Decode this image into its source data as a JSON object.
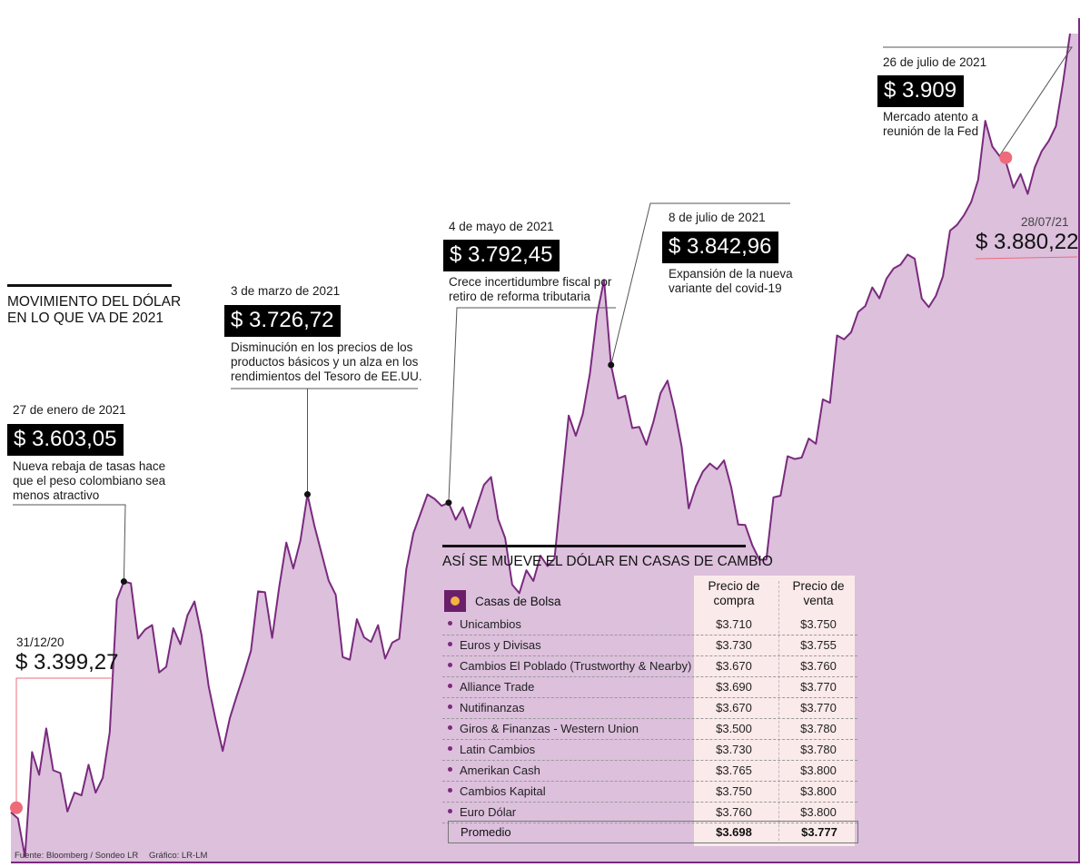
{
  "colors": {
    "fill": "#dcc0dc",
    "line": "#7a2a7e",
    "marker": "#ee6b7a",
    "pin": "#111111",
    "box": "#000000"
  },
  "header": {
    "line1": "MOVIMIENTO DEL DÓLAR",
    "line2": "EN LO QUE VA DE 2021"
  },
  "chart_data": {
    "type": "area",
    "x_label": "",
    "y_label": "",
    "ylim": [
      3360,
      3925
    ],
    "grid": false,
    "values": [
      3393.2,
      3389.1,
      3363.9,
      3433.1,
      3418.0,
      3448.7,
      3421.0,
      3419.2,
      3393.7,
      3406.2,
      3404.4,
      3424.7,
      3406.2,
      3416.0,
      3446.2,
      3533.9,
      3546.0,
      3544.8,
      3508.2,
      3514.2,
      3517.2,
      3485.8,
      3489.5,
      3515.1,
      3504.5,
      3523.5,
      3532.8,
      3510.5,
      3476.7,
      3454.4,
      3433.9,
      3455.5,
      3470.4,
      3484.6,
      3500.2,
      3539.5,
      3538.9,
      3508.7,
      3542.5,
      3571.8,
      3554.7,
      3573.1,
      3603.7,
      3582.5,
      3564.7,
      3546.7,
      3537.2,
      3496.0,
      3494.2,
      3521.1,
      3509.1,
      3506.0,
      3517.1,
      3495.0,
      3505.5,
      3508.1,
      3554.2,
      3578.0,
      3590.8,
      3603.7,
      3600.7,
      3596.1,
      3598.2,
      3586.9,
      3595.1,
      3581.5,
      3595.9,
      3610.0,
      3615.2,
      3587.3,
      3574.9,
      3543.9,
      3538.3,
      3553.4,
      3546.4,
      3563.1,
      3556.2,
      3561.2,
      3609.1,
      3655.9,
      3642.5,
      3656.8,
      3683.5,
      3722.4,
      3745.7,
      3689.4,
      3667.2,
      3669.0,
      3647.6,
      3648.4,
      3636.6,
      3651.8,
      3670.6,
      3679.0,
      3659.6,
      3635.1,
      3594.4,
      3608.9,
      3618.8,
      3624.1,
      3620.3,
      3626.2,
      3608.7,
      3583.7,
      3583.5,
      3570.1,
      3560.4,
      3560.6,
      3601.7,
      3602.8,
      3629.0,
      3627.1,
      3628.1,
      3640.7,
      3637.2,
      3666.6,
      3664.3,
      3708.9,
      3706.4,
      3711.0,
      3724.5,
      3728.4,
      3740.7,
      3733.5,
      3746.4,
      3753.2,
      3755.8,
      3762.5,
      3759.7,
      3733.4,
      3727.7,
      3735.1,
      3748.1,
      3778.3,
      3782.1,
      3788.7,
      3797.3,
      3812.0,
      3851.0,
      3834.0,
      3827.8,
      3822.6,
      3806.8,
      3815.8,
      3802.6,
      3820.0,
      3831.0,
      3837.8,
      3847.5,
      3876.0,
      3908.8
    ],
    "annotations": [
      {
        "date": "31/12/20",
        "value": "$ 3.399,27",
        "description": ""
      },
      {
        "date": "27 de enero de 2021",
        "value": "$ 3.603,05",
        "description": "Nueva rebaja de tasas hace que el peso colombiano sea menos atractivo"
      },
      {
        "date": "3 de marzo de 2021",
        "value": "$ 3.726,72",
        "description": "Disminución en los precios de los productos básicos y un alza en los rendimientos del Tesoro de EE.UU."
      },
      {
        "date": "4 de mayo de 2021",
        "value": "$ 3.792,45",
        "description": "Crece incertidumbre fiscal por retiro de reforma tributaria"
      },
      {
        "date": "8 de julio de 2021",
        "value": "$ 3.842,96",
        "description": "Expansión de la nueva variante del covid-19"
      },
      {
        "date": "26 de julio de 2021",
        "value": "$ 3.909",
        "description": "Mercado atento a reunión de la Fed"
      },
      {
        "date": "28/07/21",
        "value": "$ 3.880,22",
        "description": ""
      }
    ]
  },
  "table": {
    "title": "ASÍ SE MUEVE EL DÓLAR EN CASAS DE CAMBIO",
    "houses_label": "Casas de Bolsa",
    "col_buy": [
      "Precio de",
      "compra"
    ],
    "col_sell": [
      "Precio de",
      "venta"
    ],
    "rows": [
      {
        "name": "Unicambios",
        "buy": "$3.710",
        "sell": "$3.750"
      },
      {
        "name": "Euros y Divisas",
        "buy": "$3.730",
        "sell": "$3.755"
      },
      {
        "name": "Cambios El Poblado (Trustworthy & Nearby)",
        "buy": "$3.670",
        "sell": "$3.760"
      },
      {
        "name": "Alliance Trade",
        "buy": "$3.690",
        "sell": "$3.770"
      },
      {
        "name": "Nutifinanzas",
        "buy": "$3.670",
        "sell": "$3.770"
      },
      {
        "name": "Giros & Finanzas - Western Union",
        "buy": "$3.500",
        "sell": "$3.780"
      },
      {
        "name": "Latin Cambios",
        "buy": "$3.730",
        "sell": "$3.780"
      },
      {
        "name": "Amerikan Cash",
        "buy": "$3.765",
        "sell": "$3.800"
      },
      {
        "name": "Cambios Kapital",
        "buy": "$3.750",
        "sell": "$3.800"
      },
      {
        "name": "Euro Dólar",
        "buy": "$3.760",
        "sell": "$3.800"
      }
    ],
    "average": {
      "name": "Promedio",
      "buy": "$3.698",
      "sell": "$3.777"
    }
  },
  "footer": {
    "source": "Fuente: Bloomberg / Sondeo LR",
    "graphic": "Gráfico: LR-LM"
  }
}
